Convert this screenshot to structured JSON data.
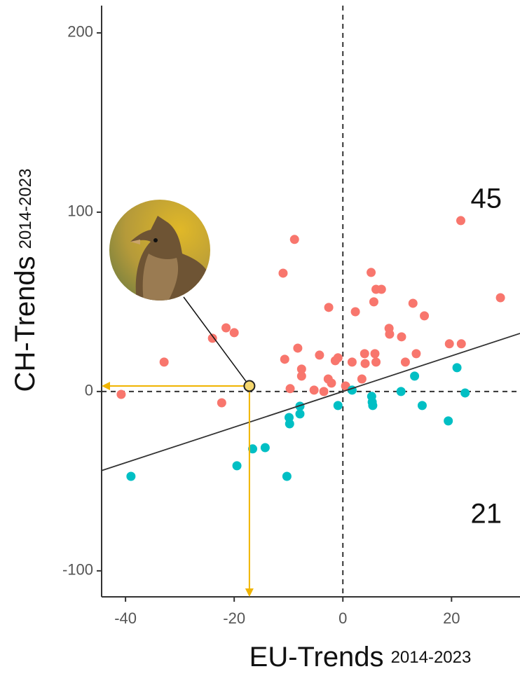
{
  "chart_data": {
    "type": "scatter",
    "x_label": "EU-Trends",
    "x_label_sub": "2014-2023",
    "y_label": "CH-Trends",
    "y_label_sub": "2014-2023",
    "xlim": [
      -44.4,
      32.6
    ],
    "xticks": [
      -40,
      -20,
      0,
      20
    ],
    "ylim": [
      -114.5,
      215.2
    ],
    "yticks": [
      -100,
      0,
      100,
      200
    ],
    "reference_lines": {
      "x": 0,
      "y": 0
    },
    "quadrant_counts": [
      45,
      21
    ],
    "series": [
      {
        "color": "#f8766d",
        "x": [
          -40.8,
          -32.9,
          -24.0,
          -22.3,
          -21.5,
          -20.0,
          -11.0,
          -8.9,
          -10.7,
          -9.7,
          -8.3,
          -7.6,
          -7.6,
          -5.3,
          -4.3,
          -2.6,
          -2.7,
          -2.1,
          -3.5,
          -1.4,
          -0.9,
          0.5,
          1.7,
          2.3,
          3.5,
          4.0,
          4.1,
          5.2,
          5.7,
          5.9,
          6.1,
          6.1,
          7.1,
          8.5,
          8.6,
          10.8,
          11.5,
          12.9,
          13.5,
          15.0,
          19.6,
          21.7,
          21.8,
          29.0
        ],
        "y": [
          -1.6,
          16.4,
          29.7,
          -6.3,
          35.5,
          32.8,
          66.0,
          84.8,
          18.0,
          1.6,
          24.2,
          12.5,
          8.6,
          0.8,
          20.3,
          46.9,
          7.0,
          4.7,
          0,
          17.2,
          18.8,
          3.1,
          16.4,
          44.5,
          7.0,
          21.1,
          15.6,
          66.4,
          50.0,
          21.1,
          16.4,
          57.0,
          57.0,
          35.2,
          32.0,
          30.5,
          16.4,
          49.2,
          21.1,
          42.2,
          26.6,
          95.3,
          26.6,
          52.3
        ]
      },
      {
        "color": "#00bfc4",
        "x": [
          -39.0,
          -19.5,
          -16.6,
          -14.3,
          -10.3,
          -9.9,
          -9.8,
          -7.9,
          -7.9,
          -0.9,
          1.7,
          5.3,
          5.4,
          5.5,
          10.7,
          13.2,
          14.6,
          19.4,
          21.0,
          22.5
        ],
        "y": [
          -47.3,
          -41.4,
          -32.0,
          -31.3,
          -47.3,
          -14.5,
          -18.0,
          -8.2,
          -12.5,
          -7.8,
          0.8,
          -2.7,
          -5.9,
          -7.8,
          0,
          8.6,
          -7.8,
          -16.4,
          13.3,
          -0.8
        ]
      }
    ],
    "trend_line": {
      "color": "#333333",
      "x": [
        -44.4,
        32.6
      ],
      "y": [
        -44.1,
        32.4
      ]
    },
    "highlight": {
      "color": "#f5d76e",
      "arrow_color": "#f0b400",
      "x": -17.2,
      "y": 3.1
    }
  }
}
